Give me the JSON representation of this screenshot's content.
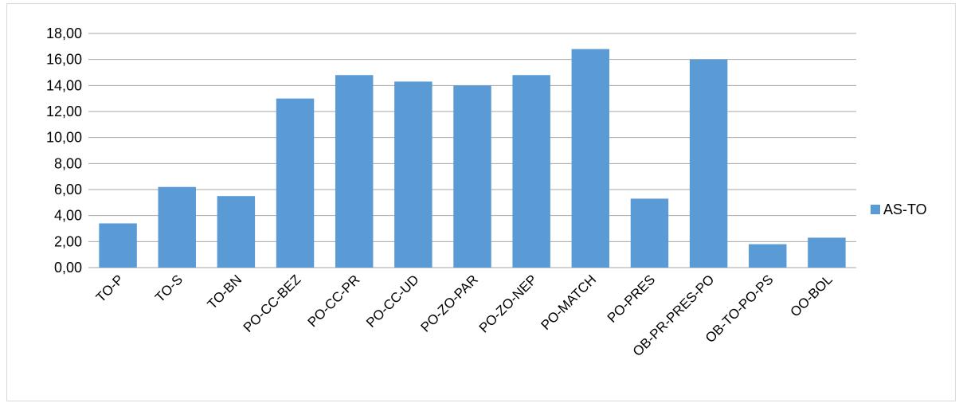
{
  "chart_data": {
    "type": "bar",
    "categories": [
      "TO-P",
      "TO-S",
      "TO-BN",
      "PO-CC-BEZ",
      "PO-CC-PR",
      "PO-CC-UD",
      "PO-ZO-PAR",
      "PO-ZO-NEP",
      "PO-MATCH",
      "PO-PRES",
      "OB-PR-PRES-PO",
      "OB-TO-PO-PS",
      "OO-BOL"
    ],
    "series": [
      {
        "name": "AS-TO",
        "values": [
          3.4,
          6.2,
          5.5,
          13.0,
          14.8,
          14.3,
          14.0,
          14.8,
          16.8,
          5.3,
          16.0,
          1.8,
          2.3
        ],
        "color": "#5b9bd5"
      }
    ],
    "title": "",
    "xlabel": "",
    "ylabel": "",
    "ylim": [
      0,
      18
    ],
    "yticks": [
      "0,00",
      "2,00",
      "4,00",
      "6,00",
      "8,00",
      "10,00",
      "12,00",
      "14,00",
      "16,00",
      "18,00"
    ],
    "grid": true,
    "legend_position": "right",
    "gridline_color": "#a6a6a6"
  }
}
